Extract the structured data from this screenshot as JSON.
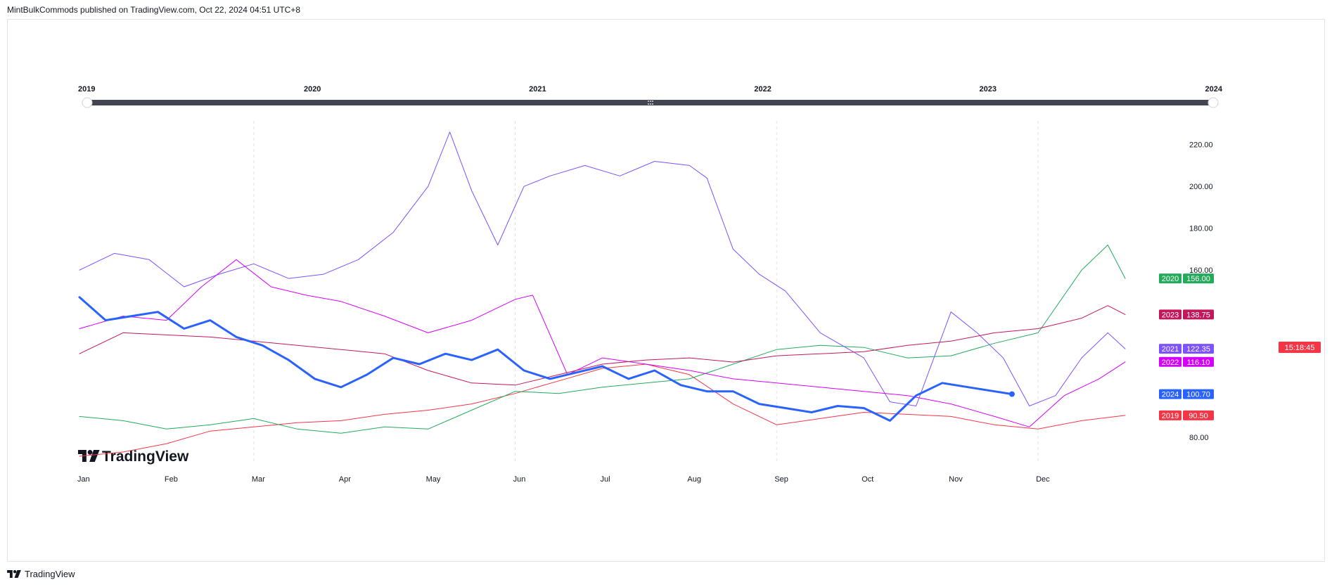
{
  "header": {
    "text": "MintBulkCommods published on TradingView.com, Oct 22, 2024 04:51 UTC+8"
  },
  "footer": {
    "brand": "TradingView"
  },
  "watermark": {
    "text": "TradingView"
  },
  "clock": {
    "text": "15:18:45",
    "color": "#f23645"
  },
  "timeline": {
    "years": [
      "2019",
      "2020",
      "2021",
      "2022",
      "2023",
      "2024"
    ],
    "handle_icon": "grip-icon"
  },
  "chart_data": {
    "type": "line",
    "title": "",
    "xlabel": "",
    "ylabel": "",
    "x_ticks": [
      "Jan",
      "Feb",
      "Mar",
      "Apr",
      "May",
      "Jun",
      "Jul",
      "Aug",
      "Sep",
      "Oct",
      "Nov",
      "Dec"
    ],
    "y_ticks": [
      80,
      160,
      180,
      200,
      220
    ],
    "y_tick_labels": [
      "80.00",
      "160.00",
      "180.00",
      "200.00",
      "220.00"
    ],
    "ylim": [
      74,
      232
    ],
    "grid": "vertical dashed at quarter starts",
    "x_unit": "month of year (0 = Jan 1, 12 = Dec 31)",
    "series": [
      {
        "name": "2019",
        "color": "#f23645",
        "label": "90.50",
        "last": 90.5,
        "width": 1,
        "x": [
          0,
          0.5,
          1,
          1.5,
          2,
          2.5,
          3,
          3.5,
          4,
          4.5,
          5,
          5.5,
          6,
          6.5,
          7,
          7.5,
          8,
          8.5,
          9,
          9.5,
          10,
          10.5,
          11,
          11.5,
          12
        ],
        "y": [
          71,
          73,
          77,
          83,
          85,
          87,
          88,
          91,
          93,
          96,
          101,
          107,
          113,
          115,
          110,
          96,
          86,
          89,
          92,
          91,
          90,
          86,
          84,
          88,
          90.5
        ]
      },
      {
        "name": "2020",
        "color": "#22ab5b",
        "label": "156.00",
        "last": 156,
        "width": 1,
        "x": [
          0,
          0.5,
          1,
          1.5,
          2,
          2.5,
          3,
          3.5,
          4,
          4.5,
          5,
          5.5,
          6,
          6.5,
          7,
          7.5,
          8,
          8.5,
          9,
          9.5,
          10,
          10.5,
          11,
          11.5,
          11.8,
          12
        ],
        "y": [
          90,
          88,
          84,
          86,
          89,
          84,
          82,
          85,
          84,
          93,
          102,
          101,
          104,
          106,
          108,
          115,
          122,
          124,
          123,
          118,
          119,
          125,
          130,
          160,
          172,
          156
        ]
      },
      {
        "name": "2021",
        "color": "#7e52ff",
        "label": "122.35",
        "last": 122.35,
        "width": 1,
        "x": [
          0,
          0.4,
          0.8,
          1.2,
          1.6,
          2,
          2.4,
          2.8,
          3.2,
          3.6,
          4,
          4.25,
          4.5,
          4.8,
          5.1,
          5.4,
          5.8,
          6.2,
          6.6,
          7,
          7.2,
          7.5,
          7.8,
          8.1,
          8.5,
          9,
          9.3,
          9.6,
          10,
          10.3,
          10.6,
          10.9,
          11.2,
          11.5,
          11.8,
          12
        ],
        "y": [
          160,
          168,
          165,
          152,
          158,
          163,
          156,
          158,
          165,
          178,
          200,
          226,
          198,
          172,
          200,
          205,
          210,
          205,
          212,
          210,
          204,
          170,
          158,
          150,
          130,
          118,
          97,
          95,
          140,
          130,
          118,
          95,
          100,
          118,
          130,
          122.35
        ]
      },
      {
        "name": "2022",
        "color": "#d500f9",
        "label": "116.10",
        "last": 116.1,
        "width": 1,
        "x": [
          0,
          0.5,
          1,
          1.4,
          1.8,
          2.2,
          2.6,
          3,
          3.5,
          4,
          4.5,
          5,
          5.2,
          5.6,
          6,
          6.5,
          7,
          7.5,
          8,
          8.5,
          9,
          9.5,
          10,
          10.5,
          10.9,
          11.3,
          11.7,
          12
        ],
        "y": [
          132,
          138,
          136,
          152,
          165,
          152,
          148,
          145,
          138,
          130,
          136,
          146,
          148,
          110,
          118,
          115,
          112,
          108,
          106,
          104,
          102,
          100,
          96,
          90,
          85,
          100,
          108,
          116.1
        ]
      },
      {
        "name": "2023",
        "color": "#c2185b",
        "label": "138.75",
        "last": 138.75,
        "width": 1,
        "x": [
          0,
          0.5,
          1,
          1.5,
          2,
          2.5,
          3,
          3.5,
          4,
          4.5,
          5,
          5.5,
          6,
          6.5,
          7,
          7.5,
          8,
          8.5,
          9,
          9.5,
          10,
          10.5,
          11,
          11.5,
          11.8,
          12
        ],
        "y": [
          120,
          130,
          129,
          128,
          126,
          124,
          122,
          120,
          112,
          106,
          105,
          110,
          115,
          117,
          118,
          116,
          119,
          120,
          121,
          124,
          126,
          130,
          132,
          137,
          143,
          138.75
        ]
      },
      {
        "name": "2024",
        "color": "#2962ff",
        "label": "100.70",
        "last": 100.7,
        "width": 3,
        "x": [
          0,
          0.3,
          0.6,
          0.9,
          1.2,
          1.5,
          1.8,
          2.1,
          2.4,
          2.7,
          3,
          3.3,
          3.6,
          3.9,
          4.2,
          4.5,
          4.8,
          5.1,
          5.4,
          5.7,
          6,
          6.3,
          6.6,
          6.9,
          7.2,
          7.5,
          7.8,
          8.1,
          8.4,
          8.7,
          9,
          9.3,
          9.6,
          9.9,
          10.2,
          10.5,
          10.7
        ],
        "y": [
          147,
          136,
          138,
          140,
          132,
          136,
          128,
          124,
          117,
          108,
          104,
          110,
          118,
          115,
          120,
          117,
          122,
          112,
          108,
          111,
          114,
          108,
          112,
          105,
          102,
          102,
          96,
          94,
          92,
          95,
          94,
          88,
          100,
          106,
          104,
          102,
          100.7
        ]
      }
    ]
  }
}
